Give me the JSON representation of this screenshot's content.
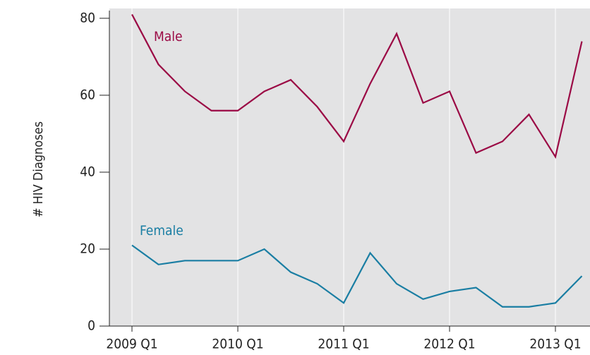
{
  "chart_data": {
    "type": "line",
    "ylabel": "# HIV Diagnoses",
    "categories": [
      "2009 Q1",
      null,
      null,
      null,
      "2010 Q1",
      null,
      null,
      null,
      "2011 Q1",
      null,
      null,
      null,
      "2012 Q1",
      null,
      null,
      null,
      "2013 Q1",
      null
    ],
    "series": [
      {
        "name": "Male",
        "color": "#9b0a45",
        "values": [
          81,
          68,
          61,
          56,
          56,
          61,
          64,
          57,
          48,
          63,
          76,
          58,
          61,
          45,
          48,
          55,
          44,
          74
        ]
      },
      {
        "name": "Female",
        "color": "#1a7ea3",
        "values": [
          21,
          16,
          17,
          17,
          17,
          20,
          14,
          11,
          6,
          19,
          11,
          7,
          9,
          10,
          5,
          5,
          6,
          13
        ]
      }
    ],
    "ylim": [
      0,
      82
    ],
    "yticks": [
      0,
      20,
      40,
      60,
      80
    ],
    "grid": true
  }
}
